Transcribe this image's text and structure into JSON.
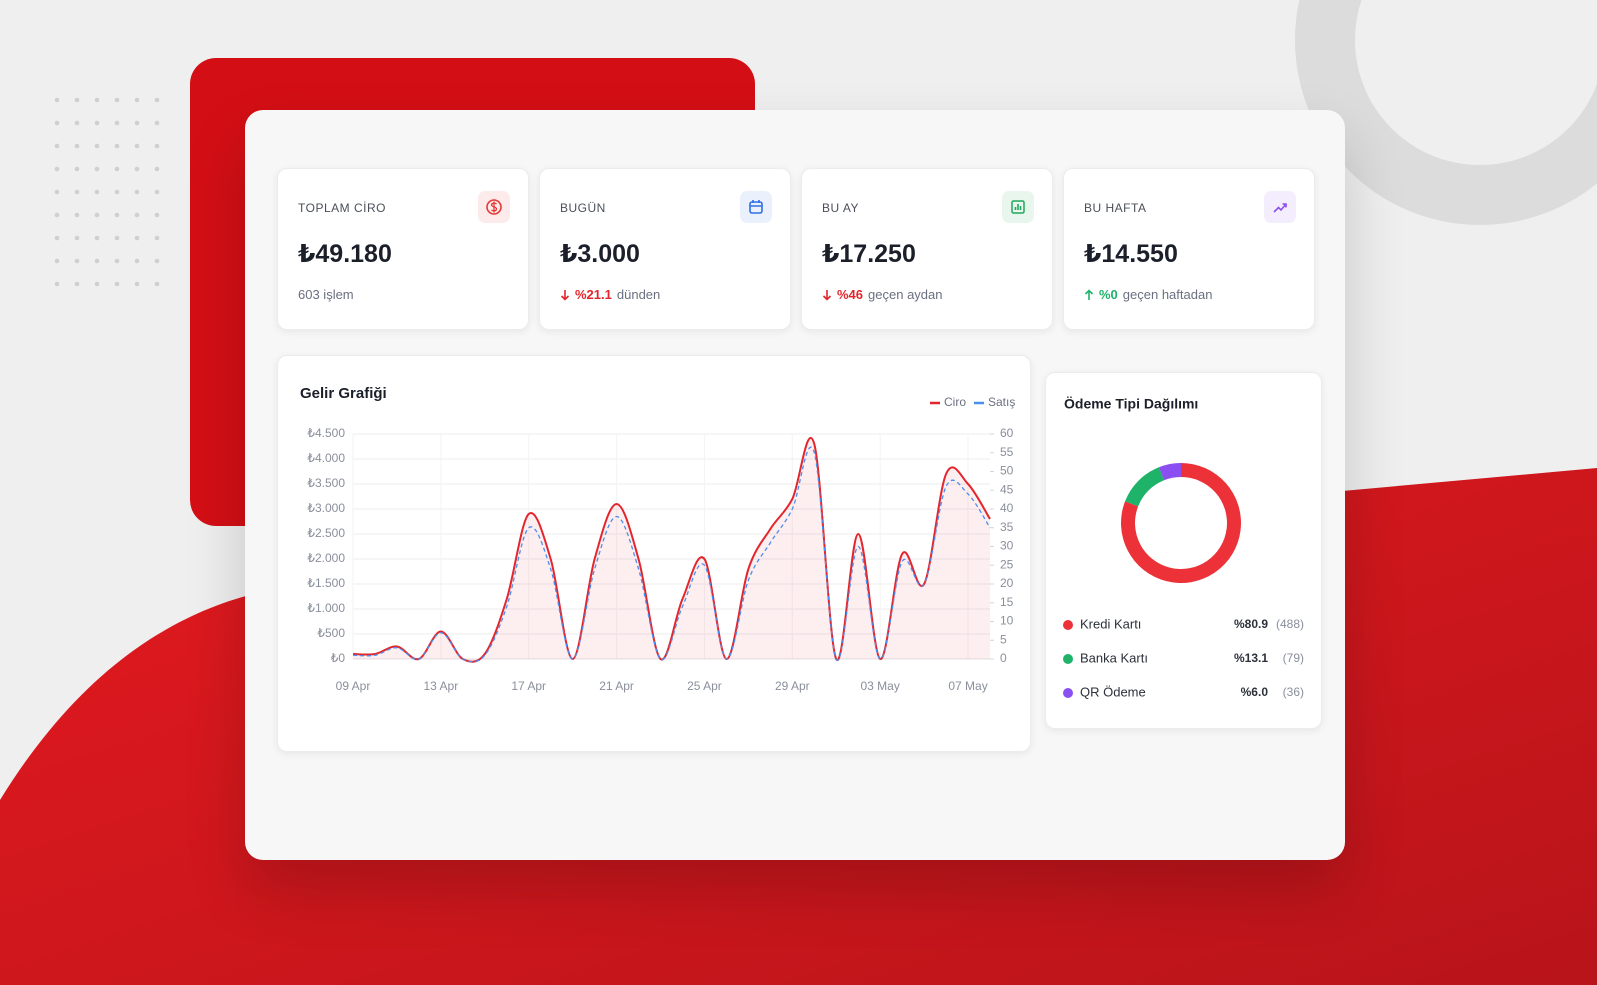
{
  "cards": [
    {
      "title": "TOPLAM CİRO",
      "value": "₺49.180",
      "note": "603 işlem",
      "color": "#e53935"
    },
    {
      "title": "BUGÜN",
      "value": "₺3.000",
      "change": "%21.1",
      "note": "dünden",
      "trend": "down",
      "color": "#2f6fe4"
    },
    {
      "title": "BU AY",
      "value": "₺17.250",
      "change": "%46",
      "note": "geçen aydan",
      "trend": "down",
      "color": "#1fa85a"
    },
    {
      "title": "BU HAFTA",
      "value": "₺14.550",
      "change": "%0",
      "note": "geçen haftadan",
      "trend": "up",
      "color": "#8b4ef0"
    }
  ],
  "chart_data": [
    {
      "type": "line",
      "title": "Gelir Grafiği",
      "categories": [
        "09 Apr",
        null,
        null,
        null,
        "13 Apr",
        null,
        null,
        null,
        "17 Apr",
        null,
        null,
        null,
        "21 Apr",
        null,
        null,
        null,
        "25 Apr",
        null,
        null,
        null,
        "29 Apr",
        null,
        null,
        null,
        "03 May",
        null,
        null,
        null,
        "07 May",
        null
      ],
      "series": [
        {
          "name": "Ciro",
          "color": "#e3262d",
          "area": true,
          "values": [
            100,
            100,
            250,
            0,
            550,
            0,
            100,
            1200,
            2900,
            2000,
            0,
            2000,
            3100,
            2000,
            0,
            1200,
            2000,
            0,
            1800,
            2600,
            3200,
            4300,
            0,
            2500,
            0,
            2100,
            1500,
            3700,
            3500,
            2800
          ]
        },
        {
          "name": "Satış",
          "color": "#4a8ef0",
          "axis": "y2",
          "dash": true,
          "values": [
            1,
            1,
            3,
            0,
            7,
            0,
            1,
            14,
            35,
            24,
            0,
            24,
            38,
            24,
            0,
            14,
            25,
            0,
            21,
            31,
            40,
            55,
            0,
            30,
            0,
            26,
            20,
            46,
            44,
            35
          ]
        }
      ],
      "ylim": [
        0,
        4500
      ],
      "yticks": [
        {
          "value": 4500,
          "label": "₺4.500"
        },
        {
          "value": 4000,
          "label": "₺4.000"
        },
        {
          "value": 3500,
          "label": "₺3.500"
        },
        {
          "value": 3000,
          "label": "₺3.000"
        },
        {
          "value": 2500,
          "label": "₺2.500"
        },
        {
          "value": 2000,
          "label": "₺2.000"
        },
        {
          "value": 1500,
          "label": "₺1.500"
        },
        {
          "value": 1000,
          "label": "₺1.000"
        },
        {
          "value": 500,
          "label": "₺500"
        },
        {
          "value": 0,
          "label": "₺0"
        }
      ],
      "y2lim": [
        0,
        60
      ],
      "y2ticks": [
        60,
        55,
        50,
        45,
        40,
        35,
        30,
        25,
        20,
        15,
        10,
        5,
        0
      ],
      "grid": true
    },
    {
      "type": "donut",
      "title": "Ödeme Tipi Dağılımı",
      "categories": [
        "Kredi Kartı",
        "Banka Kartı",
        "QR Ödeme"
      ],
      "values": [
        80.9,
        13.1,
        6.0
      ],
      "value_labels": [
        "%80.9",
        "%13.1",
        "%6.0"
      ],
      "counts": [
        488,
        79,
        36
      ],
      "count_labels": [
        "(488)",
        "(79)",
        "(36)"
      ],
      "colors": [
        "#ec3238",
        "#1fb36a",
        "#8b4ef0"
      ]
    }
  ]
}
